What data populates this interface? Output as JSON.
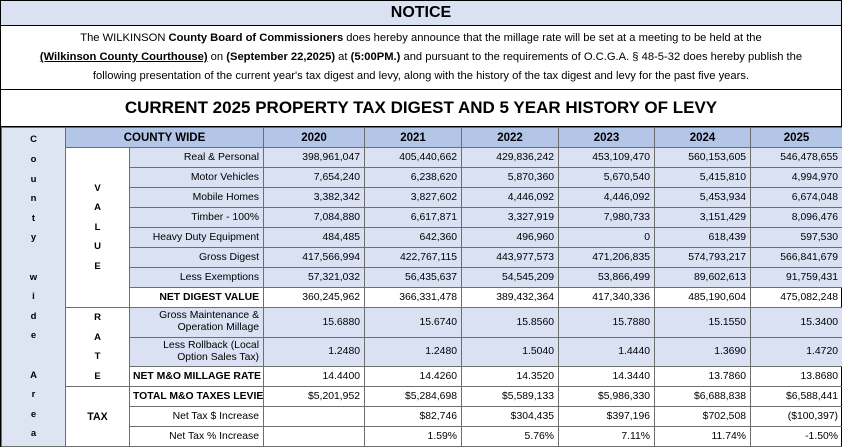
{
  "notice": {
    "heading": "NOTICE",
    "line1": {
      "pre": "The WILKINSON ",
      "bold1": "County Board of Commissioners",
      "post": " does hereby announce that the millage rate will be set at a meeting to be held at the"
    },
    "line2": {
      "location": "(Wilkinson County Courthouse)",
      "on": " on ",
      "date": "(September 22,2025)",
      "at": " at ",
      "time": "(5:00PM.)",
      "post": " and pursuant to the requirements of O.C.G.A. § 48-5-32 does hereby publish the"
    },
    "line3": "following presentation of the current year's tax digest and levy, along with the history of the tax digest and levy for the past five years."
  },
  "table_title": "CURRENT 2025 PROPERTY TAX DIGEST AND 5 YEAR HISTORY OF LEVY",
  "digest": {
    "area_label": "County wide Area",
    "column_header": "COUNTY WIDE",
    "years": [
      "2020",
      "2021",
      "2022",
      "2023",
      "2024",
      "2025"
    ],
    "value_section": {
      "label": "VALUE",
      "rows": [
        {
          "label": "Real & Personal",
          "values": [
            "398,961,047",
            "405,440,662",
            "429,836,242",
            "453,109,470",
            "560,153,605",
            "546,478,655"
          ]
        },
        {
          "label": "Motor Vehicles",
          "values": [
            "7,654,240",
            "6,238,620",
            "5,870,360",
            "5,670,540",
            "5,415,810",
            "4,994,970"
          ]
        },
        {
          "label": "Mobile Homes",
          "values": [
            "3,382,342",
            "3,827,602",
            "4,446,092",
            "4,446,092",
            "5,453,934",
            "6,674,048"
          ]
        },
        {
          "label": "Timber - 100%",
          "values": [
            "7,084,880",
            "6,617,871",
            "3,327,919",
            "7,980,733",
            "3,151,429",
            "8,096,476"
          ]
        },
        {
          "label": "Heavy Duty Equipment",
          "values": [
            "484,485",
            "642,360",
            "496,960",
            "0",
            "618,439",
            "597,530"
          ]
        },
        {
          "label": "Gross Digest",
          "values": [
            "417,566,994",
            "422,767,115",
            "443,977,573",
            "471,206,835",
            "574,793,217",
            "566,841,679"
          ]
        },
        {
          "label": "Less Exemptions",
          "values": [
            "57,321,032",
            "56,435,637",
            "54,545,209",
            "53,866,499",
            "89,602,613",
            "91,759,431"
          ]
        }
      ],
      "net": {
        "label": "NET DIGEST VALUE",
        "values": [
          "360,245,962",
          "366,331,478",
          "389,432,364",
          "417,340,336",
          "485,190,604",
          "475,082,248"
        ]
      }
    },
    "rate_section": {
      "label": "RATE",
      "rows": [
        {
          "label": "Gross Maintenance & Operation Millage",
          "values": [
            "15.6880",
            "15.6740",
            "15.8560",
            "15.7880",
            "15.1550",
            "15.3400"
          ]
        },
        {
          "label": "Less Rollback (Local Option Sales Tax)",
          "values": [
            "1.2480",
            "1.2480",
            "1.5040",
            "1.4440",
            "1.3690",
            "1.4720"
          ]
        }
      ],
      "net": {
        "label": "NET M&O MILLAGE RATE",
        "values": [
          "14.4400",
          "14.4260",
          "14.3520",
          "14.3440",
          "13.7860",
          "13.8680"
        ]
      }
    },
    "tax_section": {
      "label": "TAX",
      "rows": [
        {
          "label": "TOTAL M&O TAXES LEVIED",
          "values": [
            "$5,201,952",
            "$5,284,698",
            "$5,589,133",
            "$5,986,330",
            "$6,688,838",
            "$6,588,441"
          ]
        },
        {
          "label": "Net Tax $ Increase",
          "values": [
            "",
            "$82,746",
            "$304,435",
            "$397,196",
            "$702,508",
            "($100,397)"
          ]
        },
        {
          "label": "Net Tax % Increase",
          "values": [
            "",
            "1.59%",
            "5.76%",
            "7.11%",
            "11.74%",
            "-1.50%"
          ]
        }
      ]
    }
  },
  "colors": {
    "notice_band": "#d9e1f2",
    "header_fill": "#b4c6e7",
    "value_shade": "#d9e1f2",
    "side_fill": "#dde4f2"
  }
}
